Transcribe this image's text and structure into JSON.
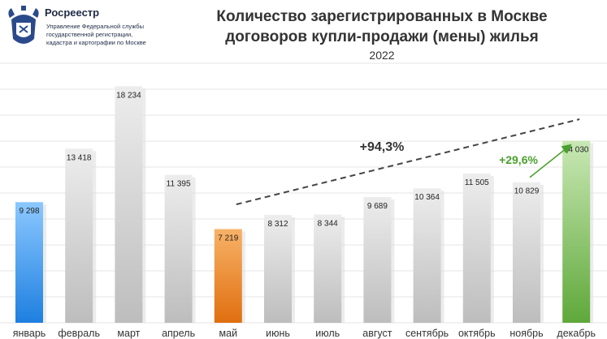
{
  "header": {
    "org_name": "Росреестр",
    "org_lines": [
      "Управление Федеральной службы",
      "государственной регистрации,",
      "кадастра и картографии по Москве"
    ],
    "title_line1": "Количество зарегистрированных в Москве",
    "title_line2": "договоров купли-продажи (мены) жилья",
    "year": "2022"
  },
  "chart_data": {
    "type": "bar",
    "title": "Количество зарегистрированных в Москве договоров купли-продажи (мены) жилья",
    "subtitle": "2022",
    "categories": [
      "январь",
      "февраль",
      "март",
      "апрель",
      "май",
      "июнь",
      "июль",
      "август",
      "сентябрь",
      "октябрь",
      "ноябрь",
      "декабрь"
    ],
    "values": [
      9298,
      13418,
      18234,
      11395,
      7219,
      8312,
      8344,
      9689,
      10364,
      11505,
      10829,
      14030
    ],
    "value_labels": [
      "9 298",
      "13 418",
      "18 234",
      "11 395",
      "7 219",
      "8 312",
      "8 344",
      "9 689",
      "10 364",
      "11 505",
      "10 829",
      "14 030"
    ],
    "ylim": [
      0,
      20000
    ],
    "grid": true,
    "highlight_colors": {
      "январь": "#3399ee",
      "май": "#e8801a",
      "декабрь": "#7ab648"
    },
    "default_color": "#cfcfcf",
    "annotations": [
      {
        "text": "+94,3%",
        "color": "#333333",
        "from": "май",
        "to": "декабрь"
      },
      {
        "text": "+29,6%",
        "color": "#4aa02c",
        "from": "ноябрь",
        "to": "декабрь"
      }
    ]
  }
}
